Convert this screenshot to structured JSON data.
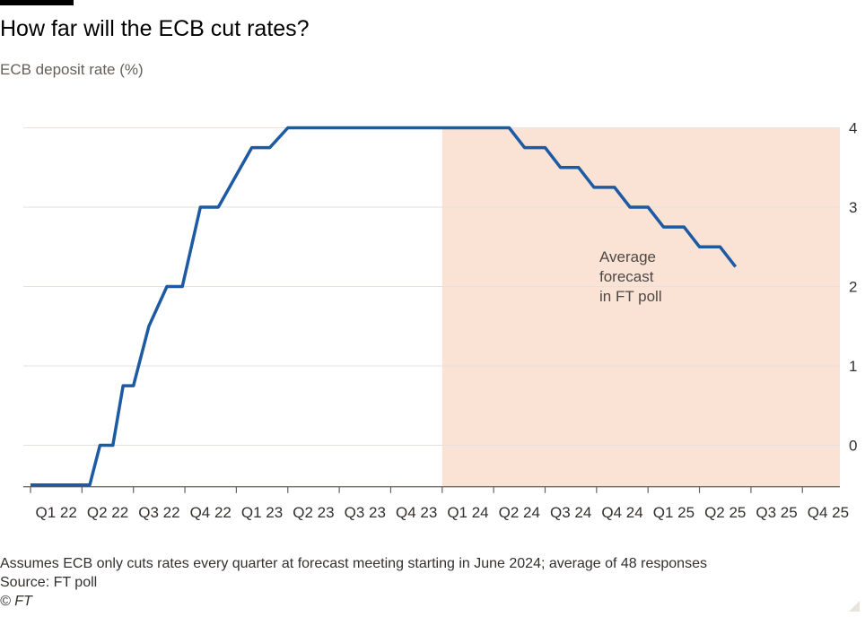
{
  "header": {
    "title": "How far will the ECB cut rates?",
    "subtitle": "ECB deposit rate (%)"
  },
  "footer": {
    "note": "Assumes ECB only cuts rates every quarter at forecast meeting starting in June 2024; average of 48 responses",
    "source": "Source: FT poll",
    "copyright": "© FT"
  },
  "colors": {
    "line": "#1c5aa3",
    "forecast_band": "#fae3d4",
    "gridline": "#e6e1dc",
    "text": "#33302e"
  },
  "chart_data": {
    "type": "line",
    "title": "How far will the ECB cut rates?",
    "ylabel": "ECB deposit rate (%)",
    "xlabel": "",
    "ylim": [
      -0.5,
      4
    ],
    "yticks": [
      0,
      1,
      2,
      3,
      4
    ],
    "y_axis_side": "right",
    "grid": true,
    "categories": [
      "Q1 22",
      "Q2 22",
      "Q3 22",
      "Q4 22",
      "Q1 23",
      "Q2 23",
      "Q3 23",
      "Q4 23",
      "Q1 24",
      "Q2 24",
      "Q3 24",
      "Q4 24",
      "Q1 25",
      "Q2 25",
      "Q3 25",
      "Q4 25"
    ],
    "annotation": "Average forecast in FT poll",
    "annotation_lines": [
      "Average",
      "forecast",
      "in FT poll"
    ],
    "forecast_start": "Q1 24",
    "series": [
      {
        "values": [
          [
            0,
            -0.5
          ],
          [
            0.7,
            -0.5
          ],
          [
            1.15,
            -0.5
          ],
          [
            1.35,
            0.0
          ],
          [
            1.6,
            0.0
          ],
          [
            1.8,
            0.75
          ],
          [
            2.0,
            0.75
          ],
          [
            2.3,
            1.5
          ],
          [
            2.65,
            2.0
          ],
          [
            2.95,
            2.0
          ],
          [
            3.3,
            3.0
          ],
          [
            3.65,
            3.0
          ],
          [
            4.3,
            3.75
          ],
          [
            4.65,
            3.75
          ],
          [
            5.0,
            4.0
          ],
          [
            9.3,
            4.0
          ],
          [
            9.6,
            3.75
          ],
          [
            10.0,
            3.75
          ],
          [
            10.3,
            3.5
          ],
          [
            10.65,
            3.5
          ],
          [
            10.95,
            3.25
          ],
          [
            11.35,
            3.25
          ],
          [
            11.65,
            3.0
          ],
          [
            12.0,
            3.0
          ],
          [
            12.3,
            2.75
          ],
          [
            12.7,
            2.75
          ],
          [
            13.0,
            2.5
          ],
          [
            13.4,
            2.5
          ],
          [
            13.7,
            2.25
          ]
        ]
      }
    ]
  }
}
